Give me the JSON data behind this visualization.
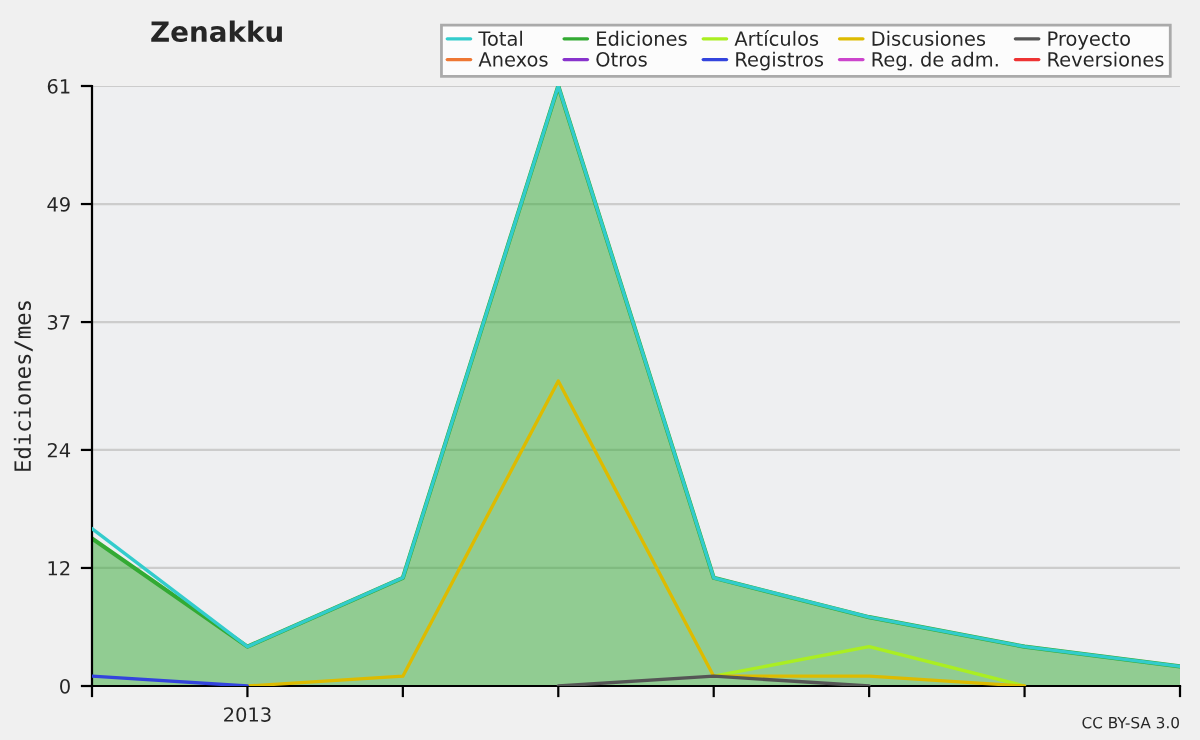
{
  "chart_data": {
    "type": "line",
    "title": "Zenakku",
    "ylabel": "Ediciones/mes",
    "categories": [
      null,
      "2013",
      null,
      null,
      null,
      null,
      null,
      null
    ],
    "ylim": [
      0,
      61
    ],
    "yticks": [
      0,
      12,
      24,
      37,
      49,
      61
    ],
    "grid": "y",
    "legend": "top right",
    "line_style": "solid",
    "annotations": [
      "CC BY-SA 3.0"
    ],
    "series": [
      {
        "name": "Total",
        "color": "#33cccc",
        "values": [
          16,
          4,
          11,
          61,
          11,
          7,
          4,
          2
        ]
      },
      {
        "name": "Ediciones",
        "type": "area",
        "color": "#33aa33",
        "values": [
          15,
          4,
          11,
          61,
          11,
          7,
          4,
          2
        ]
      },
      {
        "name": "Artículos",
        "color": "#aaee22",
        "values": [
          null,
          null,
          null,
          null,
          1,
          4,
          0,
          null
        ]
      },
      {
        "name": "Discusiones",
        "color": "#ddbb00",
        "values": [
          null,
          0,
          1,
          31,
          1,
          1,
          0,
          null
        ]
      },
      {
        "name": "Proyecto",
        "color": "#555555",
        "values": [
          null,
          null,
          null,
          0,
          1,
          0,
          null,
          null
        ]
      },
      {
        "name": "Anexos",
        "color": "#ee7733",
        "values": [
          null,
          null,
          null,
          null,
          null,
          null,
          null,
          null
        ]
      },
      {
        "name": "Otros",
        "color": "#8833cc",
        "values": [
          null,
          null,
          null,
          null,
          null,
          null,
          null,
          null
        ]
      },
      {
        "name": "Registros",
        "color": "#3344dd",
        "values": [
          1,
          0,
          null,
          null,
          null,
          null,
          null,
          null
        ]
      },
      {
        "name": "Reg. de adm.",
        "color": "#cc44cc",
        "values": [
          null,
          null,
          null,
          null,
          null,
          null,
          null,
          null
        ]
      },
      {
        "name": "Reversiones",
        "color": "#ee3333",
        "values": [
          null,
          null,
          null,
          null,
          null,
          null,
          null,
          null
        ]
      }
    ]
  }
}
